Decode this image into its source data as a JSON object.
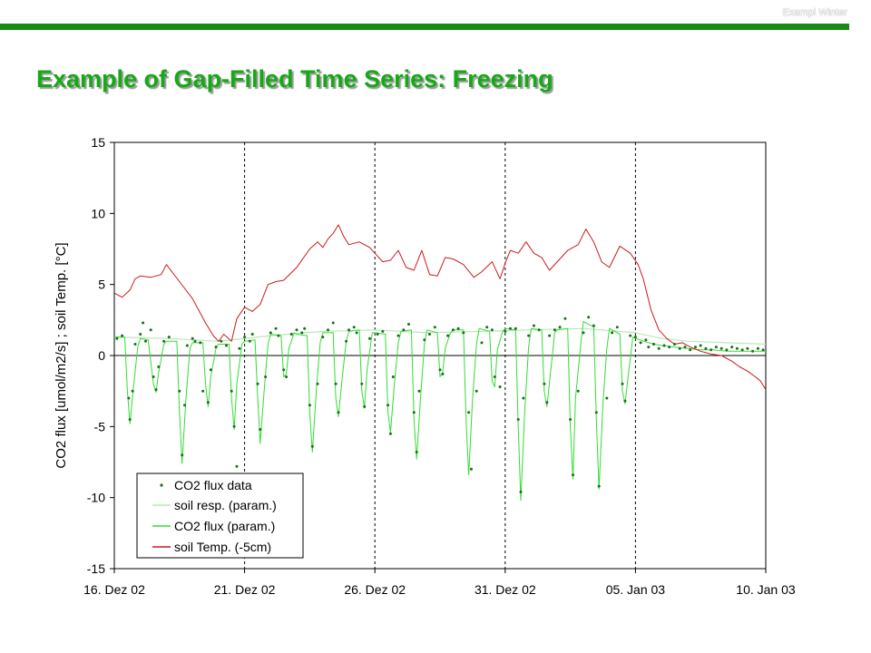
{
  "slide": {
    "header_label": "Exampl Winter",
    "title": "Example of Gap-Filled Time Series: Freezing"
  },
  "colors": {
    "brand_green": "#1a8a14",
    "title_green": "#17a817",
    "flux_data": "#1a6e1a",
    "flux_param": "#33dd33",
    "soil_resp": "#b8e8b8",
    "soil_temp": "#cc1a1a"
  },
  "chart_data": {
    "type": "line",
    "title": "",
    "ylabel": "CO2 flux [umol/m2/s] ;  soil Temp. [°C]",
    "xlabel": "",
    "ylim": [
      -15,
      15
    ],
    "y_ticks": [
      15,
      10,
      5,
      0,
      -5,
      -10,
      -15
    ],
    "y_tick_labels": [
      "15",
      "10",
      "5",
      "0",
      "-5",
      "-10",
      "-15"
    ],
    "xlim": [
      0,
      25
    ],
    "x_ticks": [
      0,
      5,
      10,
      15,
      20,
      25
    ],
    "x_tick_labels": [
      "16. Dez 02",
      "21. Dez 02",
      "26. Dez 02",
      "31. Dez 02",
      "05. Jan 03",
      "10. Jan 03"
    ],
    "x_unit": "days since 16. Dez 02",
    "vertical_dashed_lines": [
      5,
      10,
      15,
      20
    ],
    "zero_line": true,
    "grid": false,
    "legend": {
      "placement": "bottom-left",
      "entries": [
        "CO2 flux data",
        "soil resp. (param.)",
        "CO2 flux (param.)",
        "soil Temp. (-5cm)"
      ]
    },
    "series": [
      {
        "name": "soil Temp. (-5cm)",
        "kind": "line",
        "x": [
          0,
          0.3,
          0.6,
          0.8,
          1.0,
          1.4,
          1.8,
          2.0,
          2.5,
          3.0,
          3.5,
          3.8,
          4.0,
          4.2,
          4.5,
          4.7,
          5.0,
          5.3,
          5.6,
          5.9,
          6.2,
          6.5,
          7.0,
          7.5,
          7.8,
          8.0,
          8.2,
          8.4,
          8.6,
          8.8,
          9.0,
          9.4,
          9.8,
          10.0,
          10.3,
          10.6,
          10.9,
          11.2,
          11.5,
          11.8,
          12.1,
          12.4,
          12.7,
          13.0,
          13.4,
          13.8,
          14.1,
          14.5,
          14.8,
          15.0,
          15.2,
          15.5,
          15.8,
          16.1,
          16.4,
          16.7,
          17.0,
          17.4,
          17.8,
          18.1,
          18.4,
          18.7,
          19.0,
          19.4,
          19.8,
          20.1,
          20.3,
          20.6,
          20.9,
          21.2,
          21.5,
          21.8,
          22.1,
          22.5,
          22.9,
          23.3,
          23.7,
          24.0,
          24.3,
          24.6,
          24.8,
          25.0
        ],
        "values": [
          4.4,
          4.1,
          4.6,
          5.4,
          5.6,
          5.5,
          5.7,
          6.4,
          5.2,
          4.0,
          2.3,
          1.4,
          1.0,
          1.5,
          1.0,
          2.6,
          3.4,
          3.1,
          3.6,
          5.0,
          5.2,
          5.3,
          6.2,
          7.5,
          8.0,
          7.6,
          8.2,
          8.6,
          9.2,
          8.4,
          7.8,
          8.0,
          7.6,
          7.2,
          6.6,
          6.7,
          7.4,
          6.2,
          6.0,
          7.4,
          5.7,
          5.6,
          6.9,
          6.8,
          6.4,
          5.5,
          5.9,
          6.6,
          5.4,
          6.5,
          7.4,
          7.2,
          8.0,
          7.2,
          6.9,
          6.0,
          6.6,
          7.4,
          7.8,
          8.9,
          8.0,
          6.6,
          6.2,
          7.7,
          7.2,
          6.4,
          5.4,
          3.2,
          1.8,
          1.2,
          0.8,
          0.9,
          0.6,
          0.3,
          0.1,
          0.0,
          -0.4,
          -0.8,
          -1.1,
          -1.5,
          -1.8,
          -2.4
        ]
      },
      {
        "name": "soil resp. (param.)",
        "kind": "line",
        "x": [
          0,
          2,
          4,
          6,
          8,
          10,
          12,
          14,
          16,
          18,
          20,
          21,
          22,
          25
        ],
        "values": [
          1.3,
          1.2,
          1.0,
          1.4,
          1.7,
          1.8,
          1.6,
          1.7,
          1.8,
          1.9,
          1.6,
          1.2,
          1.0,
          0.8
        ]
      },
      {
        "name": "CO2 flux (param.)",
        "kind": "line",
        "x": [
          0,
          0.4,
          0.5,
          0.6,
          0.75,
          0.9,
          1.0,
          1.3,
          1.5,
          1.6,
          1.7,
          1.9,
          2.0,
          2.4,
          2.5,
          2.6,
          2.75,
          2.9,
          3.0,
          3.4,
          3.5,
          3.6,
          3.7,
          3.9,
          4.0,
          4.4,
          4.5,
          4.6,
          4.7,
          4.9,
          5.0,
          5.4,
          5.5,
          5.6,
          5.75,
          5.9,
          6.0,
          6.4,
          6.5,
          6.6,
          6.7,
          6.9,
          7.0,
          7.4,
          7.5,
          7.6,
          7.75,
          7.9,
          8.0,
          8.4,
          8.5,
          8.6,
          8.75,
          8.9,
          9.0,
          9.4,
          9.5,
          9.6,
          9.7,
          9.9,
          10.0,
          10.4,
          10.5,
          10.6,
          10.75,
          10.9,
          11.0,
          11.4,
          11.5,
          11.6,
          11.75,
          11.9,
          12.0,
          12.4,
          12.5,
          12.6,
          12.7,
          12.9,
          13.0,
          13.4,
          13.5,
          13.6,
          13.75,
          13.9,
          14.0,
          14.4,
          14.5,
          14.6,
          14.7,
          14.9,
          15.0,
          15.4,
          15.5,
          15.6,
          15.75,
          15.9,
          16.0,
          16.4,
          16.5,
          16.6,
          16.75,
          16.9,
          17.0,
          17.4,
          17.5,
          17.6,
          17.7,
          17.9,
          18.0,
          18.4,
          18.5,
          18.6,
          18.75,
          18.9,
          19.0,
          19.4,
          19.5,
          19.6,
          19.75,
          19.9,
          20.0,
          20.5,
          21.0,
          21.5,
          22.0,
          22.5,
          23.0,
          23.5,
          24.0,
          24.5,
          25.0
        ],
        "values": [
          1.3,
          1.3,
          -2.5,
          -4.8,
          -2.0,
          0.6,
          1.2,
          1.1,
          -2.0,
          -2.6,
          -1.2,
          0.8,
          1.0,
          1.0,
          -4.0,
          -7.6,
          -3.0,
          0.5,
          0.9,
          0.9,
          -2.0,
          -3.6,
          -1.5,
          0.5,
          0.8,
          0.8,
          -3.0,
          -5.2,
          -2.0,
          0.8,
          1.0,
          1.1,
          -3.0,
          -6.2,
          -2.5,
          0.8,
          1.5,
          1.4,
          -1.5,
          -1.3,
          0.5,
          1.6,
          1.5,
          1.4,
          -4.0,
          -6.8,
          -2.5,
          0.9,
          1.6,
          1.6,
          -3.0,
          -4.3,
          -1.5,
          1.0,
          1.7,
          1.8,
          -2.5,
          -3.7,
          -1.0,
          1.6,
          1.6,
          1.5,
          -4.0,
          -5.4,
          -2.0,
          0.9,
          1.7,
          1.8,
          -4.5,
          -7.3,
          -3.0,
          0.8,
          1.8,
          1.6,
          -1.5,
          -1.2,
          0.5,
          1.6,
          1.8,
          1.8,
          -4.5,
          -8.4,
          -3.0,
          0.8,
          1.9,
          1.7,
          -1.8,
          -2.2,
          0.4,
          1.7,
          1.9,
          1.8,
          -5.0,
          -10.2,
          -4.0,
          0.6,
          1.9,
          1.8,
          -2.5,
          -3.6,
          -1.0,
          1.6,
          1.8,
          1.9,
          -5.0,
          -8.7,
          -3.0,
          0.8,
          2.4,
          2.0,
          -4.5,
          -9.4,
          -3.5,
          0.5,
          1.9,
          1.5,
          -2.5,
          -3.4,
          -1.0,
          1.3,
          1.2,
          0.9,
          0.7,
          0.6,
          0.5,
          0.4,
          0.4,
          0.3,
          0.3,
          0.3,
          0.3
        ]
      },
      {
        "name": "CO2 flux data",
        "kind": "scatter",
        "x": [
          0.1,
          0.3,
          0.55,
          0.6,
          0.7,
          0.8,
          1.0,
          1.1,
          1.2,
          1.4,
          1.5,
          1.6,
          1.7,
          1.9,
          2.1,
          2.5,
          2.6,
          2.7,
          2.8,
          3.0,
          3.1,
          3.3,
          3.4,
          3.6,
          3.7,
          3.9,
          4.1,
          4.3,
          4.5,
          4.6,
          4.7,
          4.8,
          5.0,
          5.2,
          5.3,
          5.5,
          5.6,
          5.8,
          6.0,
          6.2,
          6.3,
          6.5,
          6.6,
          6.8,
          7.0,
          7.2,
          7.3,
          7.5,
          7.6,
          7.8,
          8.0,
          8.2,
          8.4,
          8.5,
          8.6,
          8.9,
          9.0,
          9.2,
          9.3,
          9.5,
          9.6,
          9.8,
          10.1,
          10.3,
          10.5,
          10.6,
          10.7,
          10.9,
          11.1,
          11.3,
          11.5,
          11.6,
          11.7,
          11.9,
          12.1,
          12.3,
          12.5,
          12.6,
          12.8,
          13.0,
          13.2,
          13.4,
          13.6,
          13.7,
          13.9,
          14.1,
          14.3,
          14.5,
          14.6,
          14.8,
          15.0,
          15.2,
          15.4,
          15.5,
          15.6,
          15.7,
          15.9,
          16.1,
          16.3,
          16.5,
          16.6,
          16.7,
          16.9,
          17.1,
          17.3,
          17.5,
          17.6,
          17.8,
          18.0,
          18.2,
          18.4,
          18.5,
          18.6,
          18.9,
          19.1,
          19.3,
          19.5,
          19.6,
          19.8,
          20.0,
          20.2,
          20.4,
          20.5,
          20.7,
          20.9,
          21.1,
          21.3,
          21.5,
          21.7,
          21.9,
          22.1,
          22.3,
          22.5,
          22.7,
          22.9,
          23.1,
          23.3,
          23.5,
          23.7,
          23.9,
          24.1,
          24.3,
          24.5,
          24.7,
          24.9
        ],
        "values": [
          1.2,
          1.4,
          -3.0,
          -4.5,
          -2.5,
          0.8,
          1.5,
          2.3,
          1.0,
          1.8,
          -1.5,
          -2.4,
          -0.8,
          1.0,
          1.3,
          -2.5,
          -7.0,
          -3.5,
          0.7,
          1.2,
          1.0,
          0.9,
          -2.5,
          -3.3,
          -1.0,
          0.6,
          1.0,
          0.7,
          -2.5,
          -5.0,
          -7.8,
          0.5,
          1.3,
          1.0,
          1.5,
          -2.0,
          -5.2,
          -1.5,
          1.6,
          1.9,
          1.4,
          -1.0,
          -1.5,
          1.5,
          1.8,
          1.6,
          1.9,
          -3.5,
          -6.4,
          -2.0,
          1.3,
          1.8,
          2.3,
          -2.0,
          -4.0,
          1.0,
          1.8,
          2.0,
          1.6,
          -2.0,
          -3.6,
          1.2,
          1.5,
          1.7,
          -3.5,
          -5.5,
          -1.5,
          1.4,
          1.8,
          2.2,
          -4.0,
          -6.8,
          -2.5,
          1.1,
          1.5,
          2.0,
          -1.0,
          -1.3,
          1.4,
          1.8,
          1.9,
          1.6,
          -4.0,
          -8.0,
          -2.5,
          0.9,
          2.0,
          1.8,
          -1.5,
          -2.2,
          1.7,
          1.9,
          1.9,
          -4.5,
          -9.6,
          -3.0,
          1.4,
          2.1,
          1.8,
          -2.0,
          -3.3,
          1.4,
          1.8,
          2.0,
          2.6,
          -4.5,
          -8.4,
          -2.5,
          1.6,
          2.7,
          2.1,
          -4.0,
          -9.2,
          -3.0,
          1.6,
          2.0,
          -2.0,
          -3.2,
          1.4,
          1.3,
          0.9,
          1.1,
          0.6,
          0.8,
          0.5,
          0.7,
          0.6,
          0.8,
          0.5,
          0.6,
          0.4,
          0.6,
          0.7,
          0.5,
          0.4,
          0.6,
          0.5,
          0.4,
          0.6,
          0.5,
          0.4,
          0.5,
          0.3,
          0.5,
          0.4
        ]
      }
    ]
  }
}
